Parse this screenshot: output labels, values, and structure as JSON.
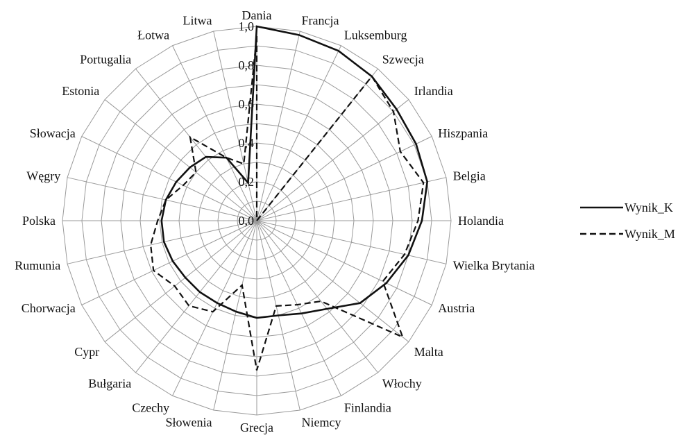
{
  "chart_data": {
    "type": "radar",
    "categories": [
      "Dania",
      "Francja",
      "Luksemburg",
      "Szwecja",
      "Irlandia",
      "Hiszpania",
      "Belgia",
      "Holandia",
      "Wielka Brytania",
      "Austria",
      "Malta",
      "Włochy",
      "Finlandia",
      "Niemcy",
      "Grecja",
      "Słowenia",
      "Czechy",
      "Bułgaria",
      "Cypr",
      "Chorwacja",
      "Rumunia",
      "Polska",
      "Węgry",
      "Słowacja",
      "Estonia",
      "Portugalia",
      "Łotwa",
      "Litwa"
    ],
    "radial_ticks": [
      "0,0",
      "0,2",
      "0,4",
      "0,6",
      "0,8",
      "1,0"
    ],
    "rlim": [
      0,
      1
    ],
    "series": [
      {
        "name": "Wynik_K",
        "style": "solid",
        "values": [
          1.0,
          0.98,
          0.97,
          0.95,
          0.92,
          0.91,
          0.9,
          0.85,
          0.8,
          0.74,
          0.68,
          0.58,
          0.53,
          0.5,
          0.5,
          0.48,
          0.47,
          0.47,
          0.47,
          0.48,
          0.49,
          0.49,
          0.48,
          0.46,
          0.44,
          0.42,
          0.36,
          0.2
        ]
      },
      {
        "name": "Wynik_M",
        "style": "dashed",
        "values": [
          0.95,
          0.0,
          0.0,
          0.95,
          0.9,
          0.82,
          0.88,
          0.83,
          0.78,
          0.72,
          0.96,
          0.53,
          0.48,
          0.45,
          0.77,
          0.34,
          0.52,
          0.56,
          0.54,
          0.59,
          0.56,
          0.51,
          0.48,
          0.42,
          0.4,
          0.55,
          0.36,
          0.3
        ]
      }
    ],
    "legend_position": "right",
    "grid": true
  }
}
